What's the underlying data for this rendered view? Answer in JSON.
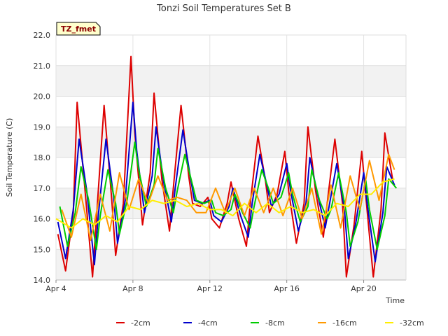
{
  "chart_data": {
    "type": "line",
    "title": "Tonzi Soil Temperatures Set B",
    "xlabel": "Time",
    "ylabel": "Soil Temperature (C)",
    "badge": "TZ_fmet",
    "xlim": [
      0,
      18.2
    ],
    "ylim": [
      14.0,
      22.0
    ],
    "x_ticks": [
      {
        "x": 0,
        "label": "Apr 4"
      },
      {
        "x": 4,
        "label": "Apr 8"
      },
      {
        "x": 8,
        "label": "Apr 12"
      },
      {
        "x": 12,
        "label": "Apr 16"
      },
      {
        "x": 16,
        "label": "Apr 20"
      }
    ],
    "y_ticks": [
      "14.0",
      "15.0",
      "16.0",
      "17.0",
      "18.0",
      "19.0",
      "20.0",
      "21.0",
      "22.0"
    ],
    "grid": true,
    "legend_position": "bottom",
    "series": [
      {
        "name": "-2cm",
        "color": "#dd0000",
        "x": [
          0.1,
          0.5,
          0.9,
          1.1,
          1.5,
          1.9,
          2.1,
          2.5,
          2.9,
          3.1,
          3.5,
          3.9,
          4.1,
          4.5,
          4.9,
          5.1,
          5.5,
          5.9,
          6.1,
          6.5,
          6.9,
          7.1,
          7.5,
          7.9,
          8.1,
          8.5,
          8.9,
          9.1,
          9.5,
          9.9,
          10.1,
          10.5,
          10.9,
          11.1,
          11.5,
          11.9,
          12.1,
          12.5,
          12.9,
          13.1,
          13.5,
          13.9,
          14.1,
          14.5,
          14.9,
          15.1,
          15.5,
          15.9,
          16.1,
          16.5,
          16.9,
          17.1,
          17.5
        ],
        "y": [
          15.5,
          14.3,
          16.2,
          19.8,
          17.0,
          14.1,
          16.0,
          19.7,
          16.6,
          14.8,
          16.5,
          21.3,
          18.8,
          15.8,
          17.5,
          20.1,
          17.3,
          15.6,
          17.0,
          19.7,
          17.4,
          16.5,
          16.4,
          16.7,
          16.0,
          15.7,
          16.5,
          17.2,
          16.0,
          15.1,
          16.5,
          18.7,
          17.2,
          16.2,
          16.8,
          18.2,
          16.9,
          15.2,
          16.5,
          19.0,
          16.9,
          15.4,
          16.5,
          18.6,
          16.5,
          14.1,
          15.8,
          18.2,
          16.8,
          14.1,
          16.3,
          18.8,
          17.3
        ]
      },
      {
        "name": "-4cm",
        "color": "#0000cc",
        "x": [
          0.1,
          0.5,
          0.9,
          1.2,
          1.6,
          2.0,
          2.2,
          2.6,
          3.0,
          3.2,
          3.6,
          4.0,
          4.2,
          4.6,
          5.0,
          5.2,
          5.6,
          6.0,
          6.2,
          6.6,
          7.0,
          7.2,
          7.6,
          8.0,
          8.2,
          8.6,
          9.0,
          9.2,
          9.6,
          10.0,
          10.2,
          10.6,
          11.0,
          11.2,
          11.6,
          12.0,
          12.2,
          12.6,
          13.0,
          13.2,
          13.6,
          14.0,
          14.2,
          14.6,
          15.0,
          15.2,
          15.6,
          16.0,
          16.2,
          16.6,
          17.0,
          17.2,
          17.6
        ],
        "y": [
          15.9,
          14.7,
          16.3,
          18.6,
          16.9,
          14.5,
          16.1,
          18.6,
          16.7,
          15.2,
          16.6,
          19.8,
          18.2,
          16.2,
          17.4,
          19.0,
          17.2,
          15.9,
          17.0,
          18.9,
          17.3,
          16.6,
          16.5,
          16.6,
          16.1,
          15.9,
          16.4,
          17.0,
          16.1,
          15.4,
          16.5,
          18.1,
          17.0,
          16.4,
          16.8,
          17.8,
          16.9,
          15.6,
          16.5,
          18.0,
          16.8,
          15.7,
          16.4,
          17.8,
          16.3,
          14.7,
          15.9,
          17.5,
          16.4,
          14.6,
          16.2,
          17.7,
          17.1
        ]
      },
      {
        "name": "-8cm",
        "color": "#00cc00",
        "x": [
          0.2,
          0.6,
          1.0,
          1.3,
          1.7,
          2.1,
          2.3,
          2.7,
          3.1,
          3.3,
          3.7,
          4.1,
          4.3,
          4.7,
          5.1,
          5.3,
          5.7,
          6.1,
          6.3,
          6.7,
          7.1,
          7.3,
          7.7,
          8.1,
          8.3,
          8.7,
          9.1,
          9.3,
          9.7,
          10.1,
          10.3,
          10.7,
          11.1,
          11.3,
          11.7,
          12.1,
          12.3,
          12.7,
          13.1,
          13.3,
          13.7,
          14.1,
          14.3,
          14.7,
          15.1,
          15.3,
          15.7,
          16.1,
          16.3,
          16.7,
          17.1,
          17.3,
          17.7
        ],
        "y": [
          16.4,
          15.1,
          16.2,
          17.7,
          16.6,
          15.0,
          16.1,
          17.6,
          16.5,
          15.5,
          16.6,
          18.5,
          17.6,
          16.4,
          17.1,
          18.3,
          17.0,
          16.2,
          16.9,
          18.1,
          17.1,
          16.6,
          16.5,
          16.6,
          16.2,
          16.1,
          16.3,
          16.8,
          16.2,
          15.7,
          16.4,
          17.6,
          16.9,
          16.5,
          16.7,
          17.5,
          16.8,
          15.9,
          16.4,
          17.6,
          16.6,
          16.0,
          16.3,
          17.5,
          16.2,
          15.1,
          15.9,
          17.3,
          16.3,
          15.0,
          16.1,
          17.3,
          17.0
        ]
      },
      {
        "name": "-16cm",
        "color": "#ff9900",
        "x": [
          0.3,
          0.8,
          1.3,
          1.8,
          2.3,
          2.8,
          3.3,
          3.8,
          4.3,
          4.8,
          5.3,
          5.8,
          6.3,
          6.8,
          7.3,
          7.8,
          8.3,
          8.8,
          9.3,
          9.8,
          10.3,
          10.8,
          11.3,
          11.8,
          12.3,
          12.8,
          13.3,
          13.8,
          14.3,
          14.8,
          15.3,
          15.8,
          16.3,
          16.8,
          17.3,
          17.6
        ],
        "y": [
          16.3,
          15.4,
          16.8,
          15.3,
          16.8,
          15.6,
          17.5,
          16.3,
          17.3,
          16.5,
          17.4,
          16.6,
          16.7,
          16.6,
          16.2,
          16.2,
          17.0,
          16.2,
          17.0,
          16.1,
          17.0,
          16.2,
          17.0,
          16.1,
          17.0,
          16.0,
          17.0,
          15.5,
          17.1,
          15.7,
          17.4,
          16.3,
          17.9,
          16.6,
          18.1,
          17.6
        ]
      },
      {
        "name": "-32cm",
        "color": "#ffee00",
        "x": [
          0.0,
          0.8,
          1.4,
          2.0,
          2.6,
          3.2,
          3.8,
          4.4,
          5.0,
          5.6,
          6.2,
          6.8,
          7.4,
          8.0,
          8.6,
          9.2,
          9.8,
          10.4,
          11.0,
          11.6,
          12.2,
          12.8,
          13.4,
          14.0,
          14.6,
          15.2,
          15.8,
          16.4,
          17.0,
          17.6
        ],
        "y": [
          16.0,
          15.7,
          16.0,
          15.8,
          16.1,
          15.9,
          16.4,
          16.3,
          16.6,
          16.5,
          16.6,
          16.4,
          16.5,
          16.3,
          16.3,
          16.1,
          16.5,
          16.2,
          16.5,
          16.2,
          16.4,
          16.2,
          16.3,
          16.1,
          16.5,
          16.4,
          16.8,
          16.8,
          17.2,
          17.3
        ]
      }
    ]
  }
}
